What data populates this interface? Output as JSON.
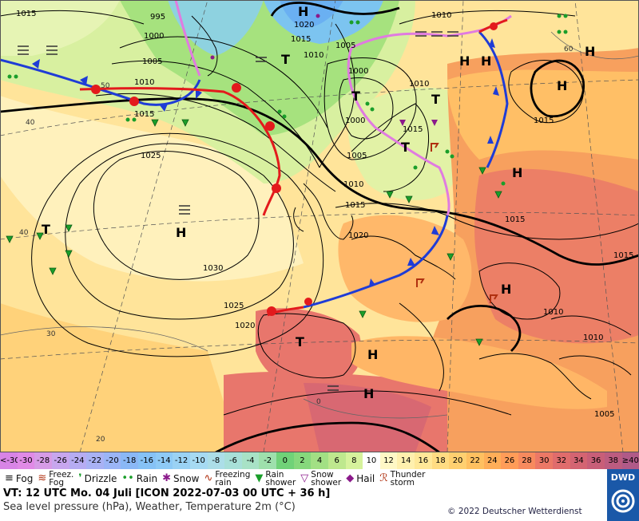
{
  "map": {
    "isobars": [
      "1015",
      "995",
      "1000",
      "1005",
      "1010",
      "1020",
      "1015",
      "1010",
      "1005",
      "1000",
      "1000",
      "1005",
      "1010",
      "1015",
      "1020",
      "1025",
      "1030",
      "1025",
      "1020",
      "1015",
      "1010",
      "1015",
      "1010",
      "1005",
      "1015",
      "1015",
      "1010",
      "1010",
      "1015"
    ],
    "pressure_centers": [
      "H",
      "H",
      "H",
      "H",
      "H",
      "H",
      "H",
      "H",
      "H",
      "H",
      "T",
      "T",
      "T",
      "T",
      "T",
      "T"
    ],
    "temperature_isotherms": [
      "0",
      "20",
      "30",
      "40",
      "50",
      "40",
      "60"
    ],
    "colors": {
      "cold_front": "#1f3cd6",
      "warm_front": "#e31a1c",
      "occlusion": "#e07be0",
      "isobar": "#000000"
    }
  },
  "scale": {
    "cells": [
      {
        "label": "<-30",
        "color": "#d884e6"
      },
      {
        "label": "-30",
        "color": "#e08ae6"
      },
      {
        "label": "-28",
        "color": "#d69be6"
      },
      {
        "label": "-26",
        "color": "#c7a6ee"
      },
      {
        "label": "-24",
        "color": "#b6acf2"
      },
      {
        "label": "-22",
        "color": "#a9b2f4"
      },
      {
        "label": "-20",
        "color": "#9bb5f6"
      },
      {
        "label": "-18",
        "color": "#8ab8f6"
      },
      {
        "label": "-16",
        "color": "#86c2f6"
      },
      {
        "label": "-14",
        "color": "#8ecaf6"
      },
      {
        "label": "-12",
        "color": "#9ad2f4"
      },
      {
        "label": "-10",
        "color": "#a6daf2"
      },
      {
        "label": "-8",
        "color": "#acdee8"
      },
      {
        "label": "-6",
        "color": "#a8e0d8"
      },
      {
        "label": "-4",
        "color": "#a8e2c6"
      },
      {
        "label": "-2",
        "color": "#9ee0ac"
      },
      {
        "label": "0",
        "color": "#70d278"
      },
      {
        "label": "2",
        "color": "#86d87c"
      },
      {
        "label": "4",
        "color": "#a2e084"
      },
      {
        "label": "6",
        "color": "#bee88e"
      },
      {
        "label": "8",
        "color": "#d6f29c"
      },
      {
        "label": "10",
        "color": "#ffffff"
      },
      {
        "label": "12",
        "color": "#fff8c6"
      },
      {
        "label": "14",
        "color": "#fff0ae"
      },
      {
        "label": "16",
        "color": "#ffe898"
      },
      {
        "label": "18",
        "color": "#ffdc82"
      },
      {
        "label": "20",
        "color": "#ffd070"
      },
      {
        "label": "22",
        "color": "#ffc060"
      },
      {
        "label": "24",
        "color": "#ffae58"
      },
      {
        "label": "26",
        "color": "#ff9c58"
      },
      {
        "label": "28",
        "color": "#f78a5e"
      },
      {
        "label": "30",
        "color": "#ec7866"
      },
      {
        "label": "32",
        "color": "#e06c6c"
      },
      {
        "label": "34",
        "color": "#d46472"
      },
      {
        "label": "36",
        "color": "#c85e78"
      },
      {
        "label": "38",
        "color": "#bc5c80"
      },
      {
        "label": "≥40",
        "color": "#b05a88"
      }
    ]
  },
  "legend": {
    "fog": "Fog",
    "freez_fog_1": "Freez.",
    "freez_fog_2": "Fog",
    "drizzle": "Drizzle",
    "rain": "Rain",
    "snow": "Snow",
    "freezing_rain_1": "Freezing",
    "freezing_rain_2": "rain",
    "rain_shower_1": "Rain",
    "rain_shower_2": "shower",
    "snow_shower_1": "Snow",
    "snow_shower_2": "shower",
    "hail": "Hail",
    "thunderstorm_1": "Thunder",
    "thunderstorm_2": "storm"
  },
  "footer": {
    "valid_time": "VT: 12 UTC Mo.  04 Juli [ICON 2022-07-03  00 UTC + 36 h]",
    "subtitle": "Sea level pressure (hPa), Weather, Temperature 2m (°C)",
    "copyright": "© 2022 Deutscher Wetterdienst",
    "logo_text": "DWD"
  }
}
